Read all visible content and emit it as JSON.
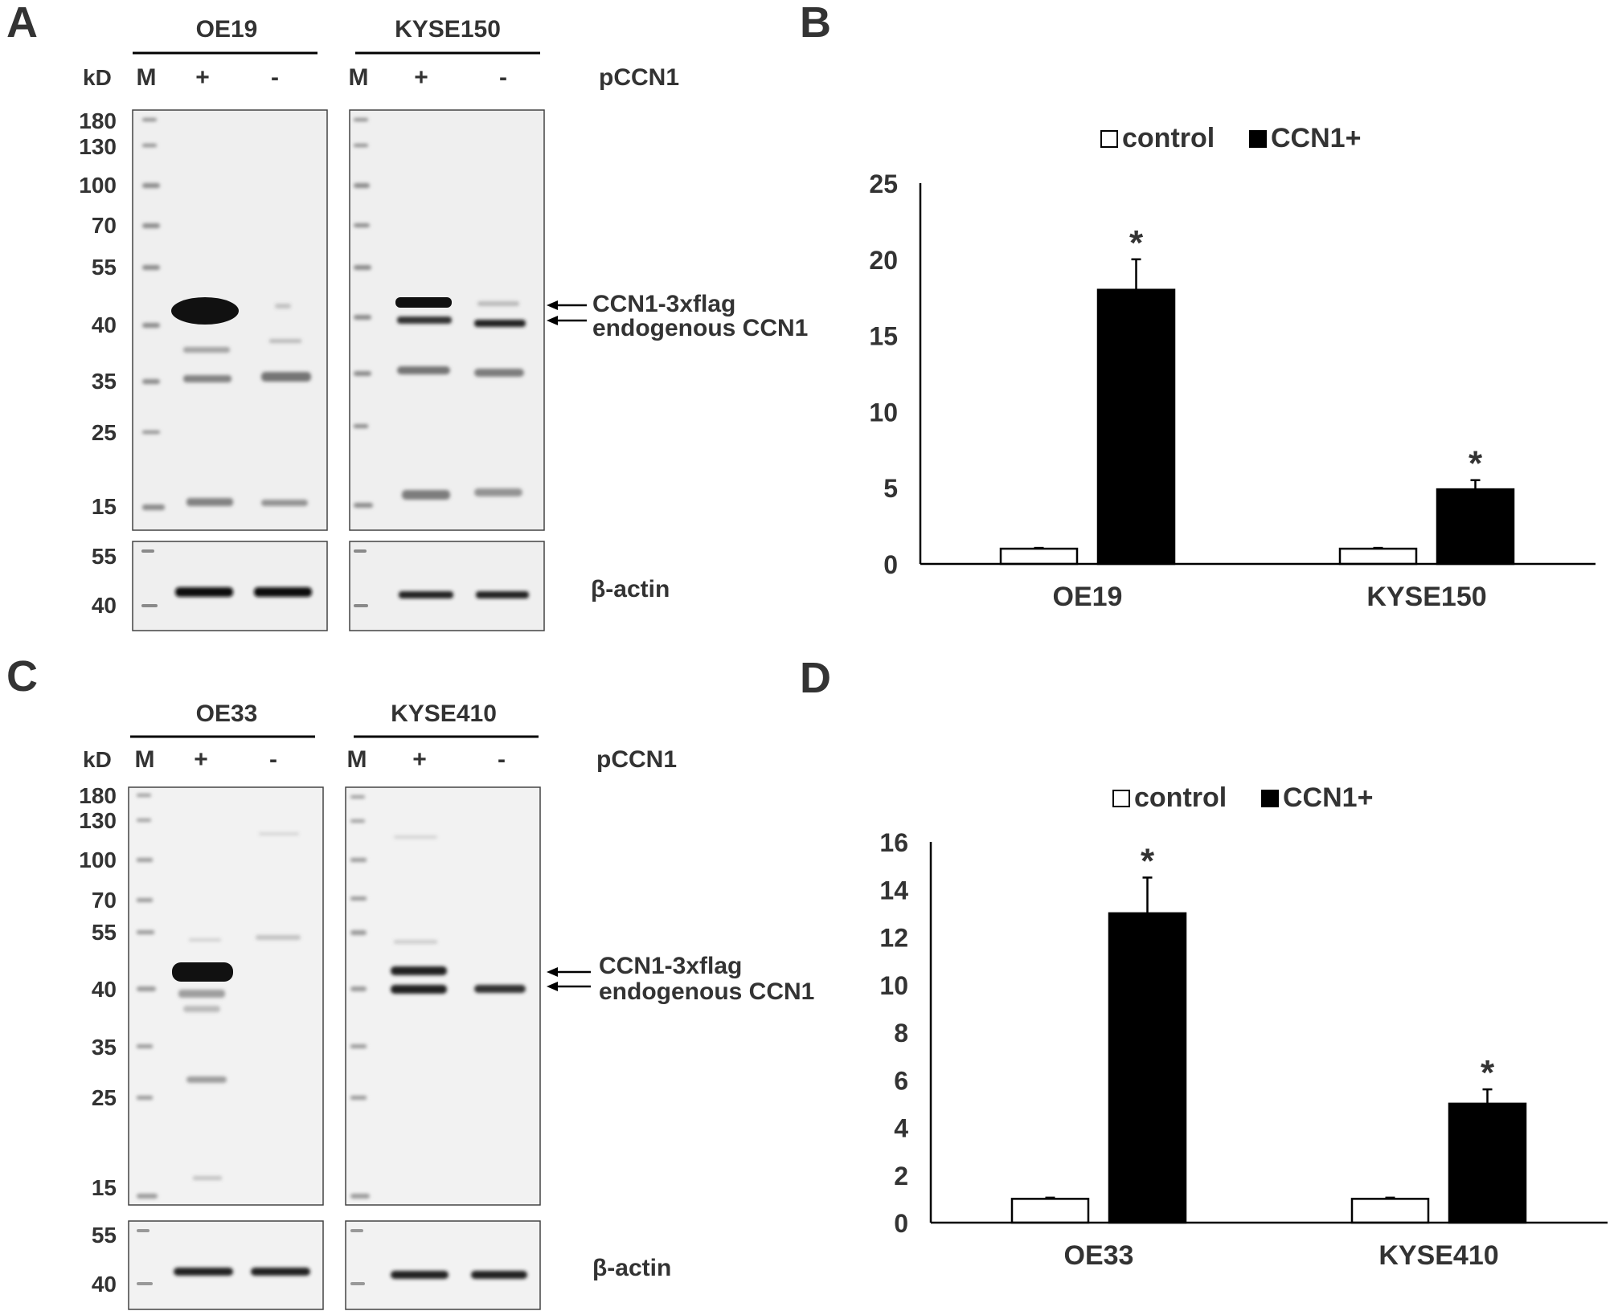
{
  "panels": {
    "A": {
      "letter": "A",
      "kd_label": "kD",
      "plasmid_label": "pCCN1",
      "cell_lines": [
        "OE19",
        "KYSE150"
      ],
      "lane_headers": [
        "M",
        "+",
        "-"
      ],
      "mw_markers": [
        "180",
        "130",
        "100",
        "70",
        "55",
        "40",
        "35",
        "25",
        "15"
      ],
      "actin_markers": [
        "55",
        "40"
      ],
      "arrow_labels": [
        "CCN1-3xflag",
        "endogenous CCN1"
      ],
      "loading_label": "β-actin"
    },
    "C": {
      "letter": "C",
      "kd_label": "kD",
      "plasmid_label": "pCCN1",
      "cell_lines": [
        "OE33",
        "KYSE410"
      ],
      "lane_headers": [
        "M",
        "+",
        "-"
      ],
      "mw_markers": [
        "180",
        "130",
        "100",
        "70",
        "55",
        "40",
        "35",
        "25",
        "15"
      ],
      "actin_markers": [
        "55",
        "40"
      ],
      "arrow_labels": [
        "CCN1-3xflag",
        "endogenous CCN1"
      ],
      "loading_label": "β-actin"
    }
  },
  "chart_data": [
    {
      "panel": "B",
      "type": "bar",
      "categories": [
        "OE19",
        "KYSE150"
      ],
      "series": [
        {
          "name": "control",
          "color": "#ffffff",
          "values": [
            1.0,
            1.0
          ],
          "errors": [
            0.05,
            0.05
          ]
        },
        {
          "name": "CCN1+",
          "color": "#000000",
          "values": [
            18.0,
            4.9
          ],
          "errors": [
            2.0,
            0.6
          ]
        }
      ],
      "significance": [
        "*",
        "*"
      ],
      "ylim": [
        0,
        25
      ],
      "yticks": [
        "0",
        "5",
        "10",
        "15",
        "20",
        "25"
      ],
      "legend": "top-center"
    },
    {
      "panel": "D",
      "type": "bar",
      "categories": [
        "OE33",
        "KYSE410"
      ],
      "series": [
        {
          "name": "control",
          "color": "#ffffff",
          "values": [
            1.0,
            1.0
          ],
          "errors": [
            0.05,
            0.05
          ]
        },
        {
          "name": "CCN1+",
          "color": "#000000",
          "values": [
            13.0,
            5.0
          ],
          "errors": [
            1.5,
            0.6
          ]
        }
      ],
      "significance": [
        "*",
        "*"
      ],
      "ylim": [
        0,
        16
      ],
      "yticks": [
        "0",
        "2",
        "4",
        "6",
        "8",
        "10",
        "12",
        "14",
        "16"
      ],
      "legend": "top-center"
    }
  ],
  "panel_letters": {
    "B": "B",
    "D": "D"
  }
}
